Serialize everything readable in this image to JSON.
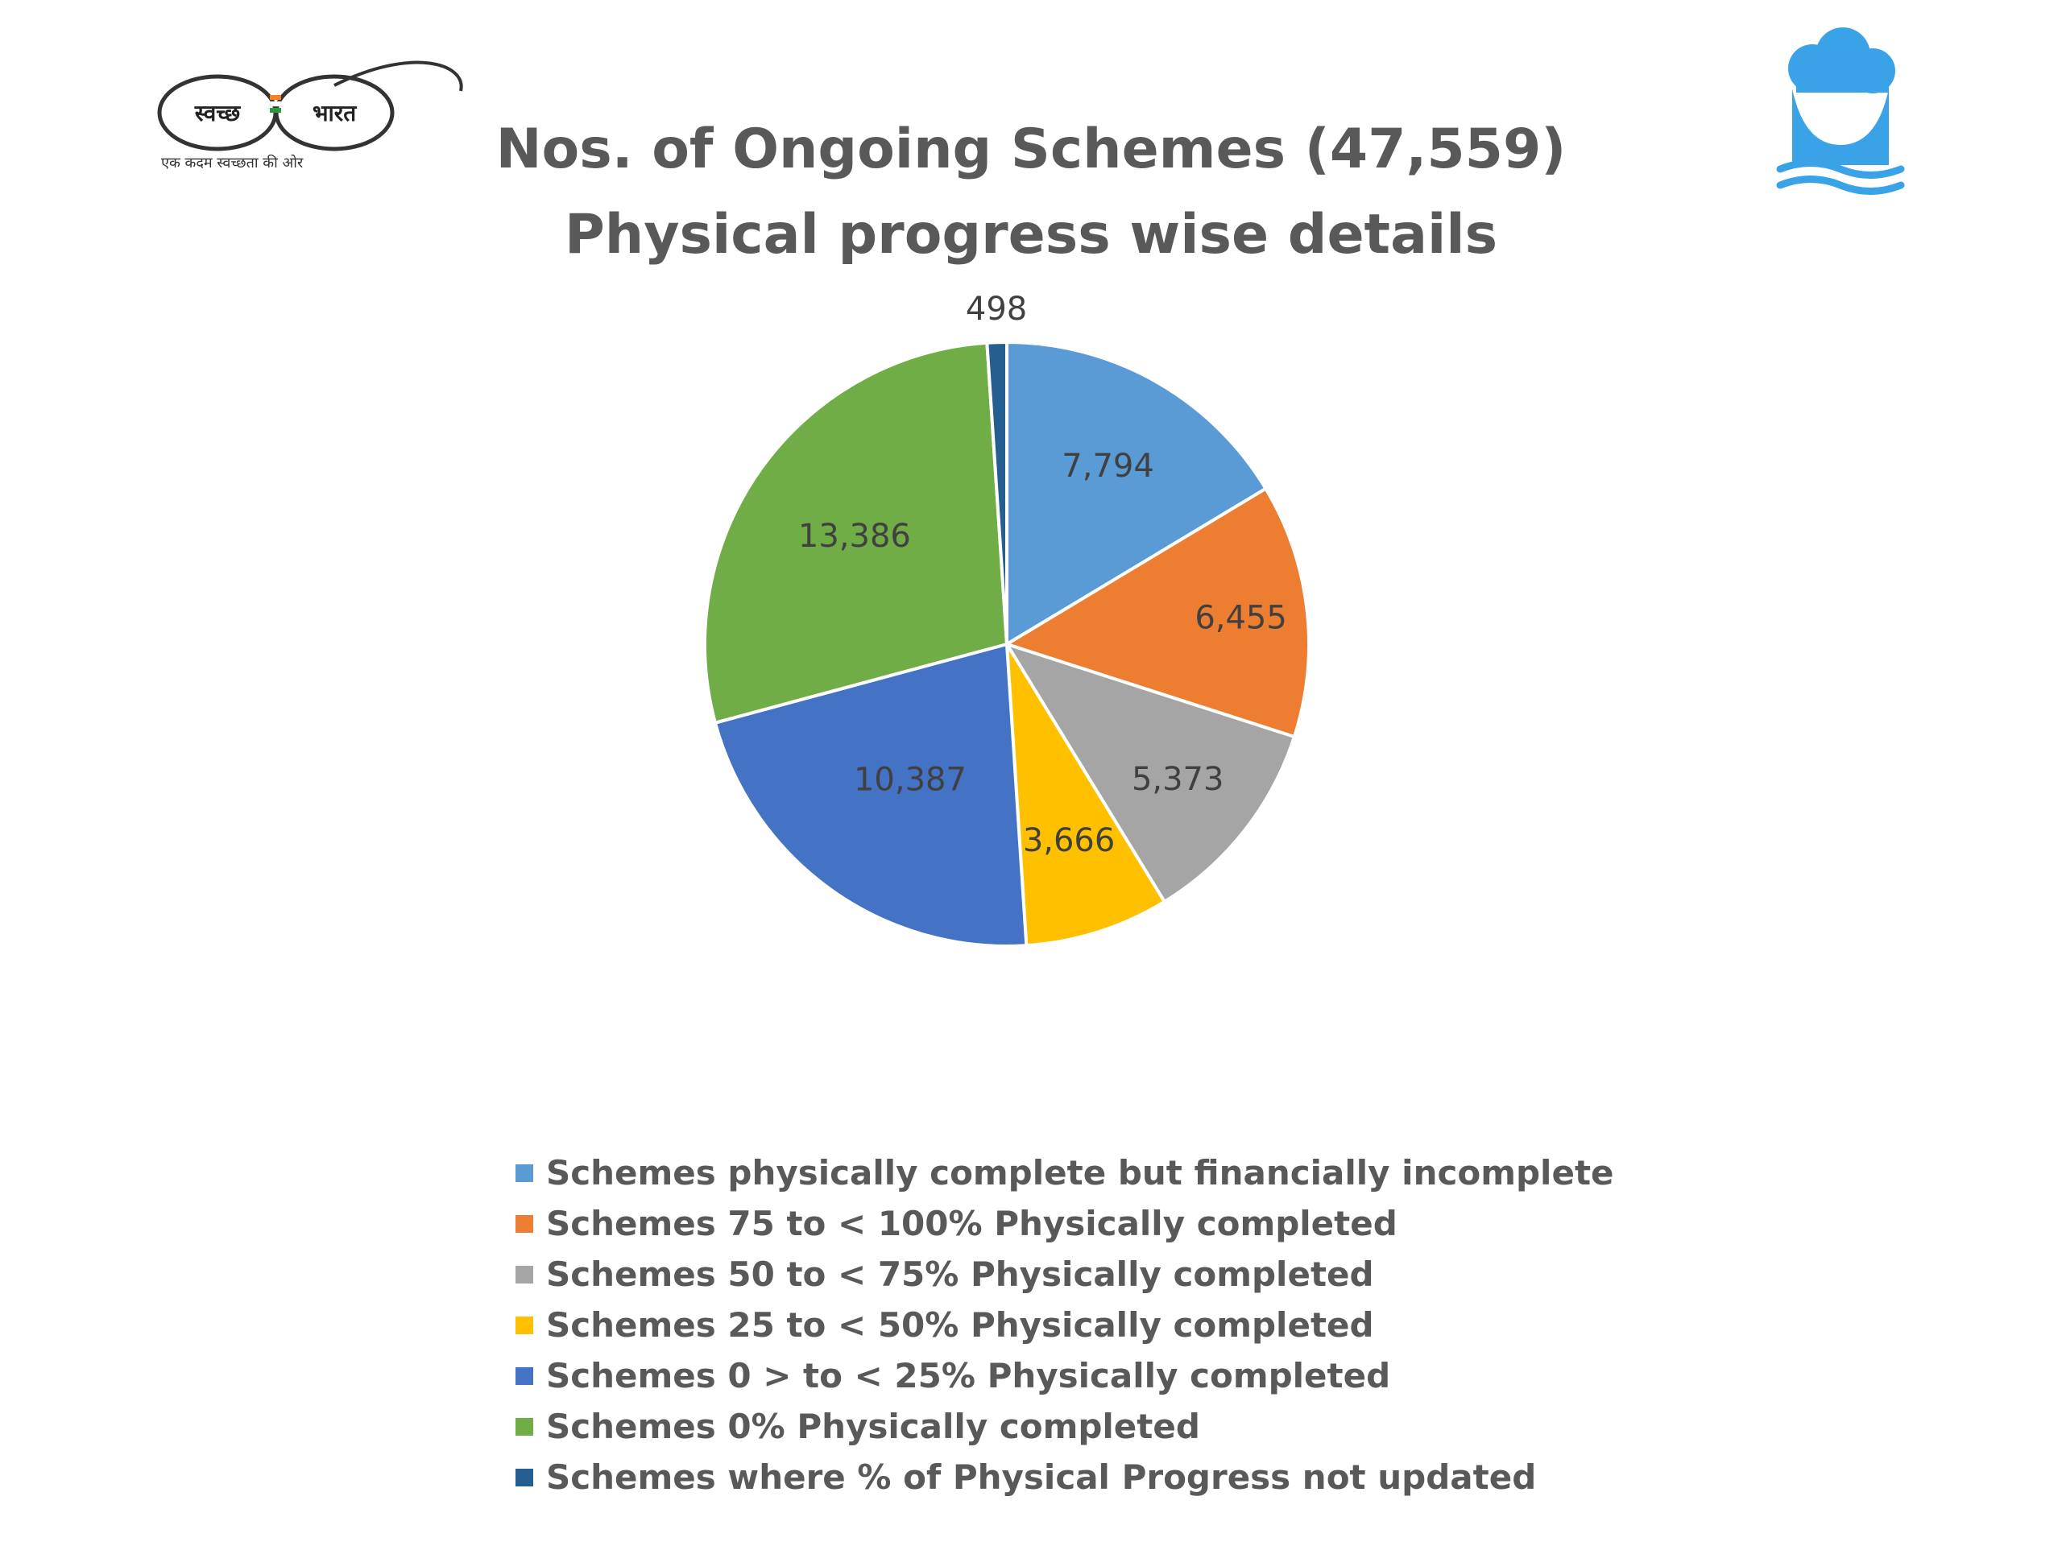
{
  "logos": {
    "swachh_bharat": {
      "icon": "swachh-bharat-spectacles-logo",
      "left_text": "स्वच्छ",
      "right_text": "भारत",
      "tagline": "एक कदम स्वच्छता की ओर"
    },
    "water": {
      "icon": "water-drop-logo",
      "colors": {
        "primary": "#3aa3e8"
      }
    }
  },
  "chart_data": {
    "type": "pie",
    "title": "Nos. of Ongoing Schemes (47,559)",
    "subtitle": "Physical progress wise details",
    "start_angle_deg": 0,
    "direction": "clockwise",
    "slices": [
      {
        "label": "Schemes physically complete but financially incomplete",
        "value": 7794,
        "display": "7,794",
        "color": "#5b9bd5"
      },
      {
        "label": "Schemes 75 to < 100% Physically completed",
        "value": 6455,
        "display": "6,455",
        "color": "#ed7d31"
      },
      {
        "label": "Schemes 50 to < 75% Physically completed",
        "value": 5373,
        "display": "5,373",
        "color": "#a5a5a5"
      },
      {
        "label": "Schemes 25 to < 50% Physically completed",
        "value": 3666,
        "display": "3,666",
        "color": "#ffc000"
      },
      {
        "label": "Schemes 0 > to < 25% Physically completed",
        "value": 10387,
        "display": "10,387",
        "color": "#4472c4"
      },
      {
        "label": "Schemes 0% Physically completed",
        "value": 13386,
        "display": "13,386",
        "color": "#70ad47"
      },
      {
        "label": "Schemes where % of Physical Progress not updated",
        "value": 498,
        "display": "498",
        "color": "#255e91"
      }
    ],
    "legend_position": "bottom"
  }
}
